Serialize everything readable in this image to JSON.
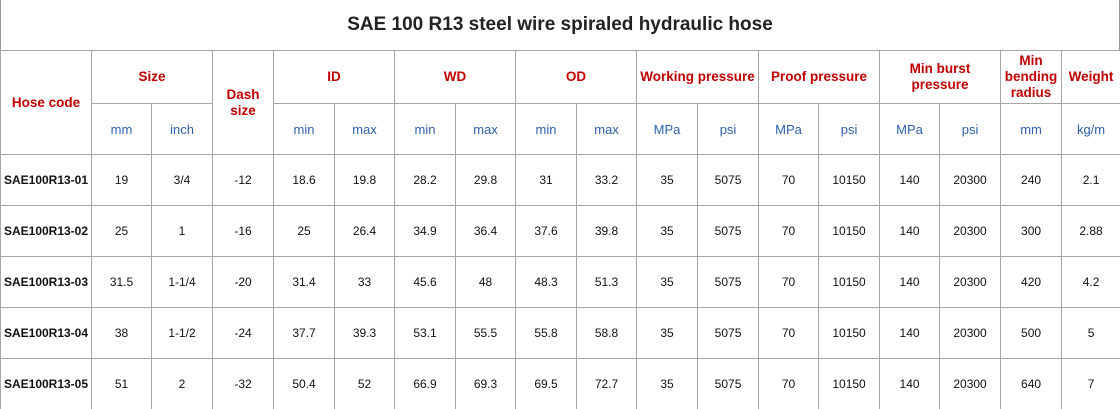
{
  "header": {
    "title": "SAE 100 R13 steel wire spiraled hydraulic hose"
  },
  "table": {
    "columns": [
      {
        "label": "Hose code"
      },
      {
        "label": "Size",
        "units": [
          "mm",
          "inch"
        ]
      },
      {
        "label": "Dash size"
      },
      {
        "label": "ID",
        "units": [
          "min",
          "max"
        ]
      },
      {
        "label": "WD",
        "units": [
          "min",
          "max"
        ]
      },
      {
        "label": "OD",
        "units": [
          "min",
          "max"
        ]
      },
      {
        "label": "Working pressure",
        "units": [
          "MPa",
          "psi"
        ]
      },
      {
        "label": "Proof pressure",
        "units": [
          "MPa",
          "psi"
        ]
      },
      {
        "label": "Min burst pressure",
        "units": [
          "MPa",
          "psi"
        ]
      },
      {
        "label": "Min bending radius",
        "units": [
          "mm"
        ]
      },
      {
        "label": "Weight",
        "units": [
          "kg/m"
        ]
      }
    ],
    "rows": [
      [
        "SAE100R13-01",
        19,
        "3/4",
        -12,
        18.6,
        19.8,
        28.2,
        29.8,
        31,
        33.2,
        35,
        5075,
        70,
        10150,
        140,
        20300,
        240,
        2.1
      ],
      [
        "SAE100R13-02",
        25,
        1,
        -16,
        25,
        26.4,
        34.9,
        36.4,
        37.6,
        39.8,
        35,
        5075,
        70,
        10150,
        140,
        20300,
        300,
        2.88
      ],
      [
        "SAE100R13-03",
        31.5,
        "1-1/4",
        -20,
        31.4,
        33,
        45.6,
        48,
        48.3,
        51.3,
        35,
        5075,
        70,
        10150,
        140,
        20300,
        420,
        4.2
      ],
      [
        "SAE100R13-04",
        38,
        "1-1/2",
        -24,
        37.7,
        39.3,
        53.1,
        55.5,
        55.8,
        58.8,
        35,
        5075,
        70,
        10150,
        140,
        20300,
        500,
        5
      ],
      [
        "SAE100R13-05",
        51,
        2,
        -32,
        50.4,
        52,
        66.9,
        69.3,
        69.5,
        72.7,
        35,
        5075,
        70,
        10150,
        140,
        20300,
        640,
        7
      ]
    ]
  }
}
